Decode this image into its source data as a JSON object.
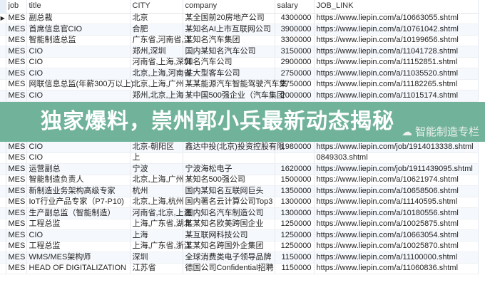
{
  "columns": [
    "job",
    "title",
    "CITY",
    "company",
    "salary",
    "JOB_LINK"
  ],
  "rows": [
    [
      "MES",
      "副总裁",
      "北京",
      "某全国前20房地产公司",
      "4300000",
      "https://www.liepin.com/a/10663055.shtml"
    ],
    [
      "MES",
      "首席信息官CIO",
      "合肥",
      "某知名AI上市互联网公司",
      "3900000",
      "https://www.liepin.com/a/10761042.shtml"
    ],
    [
      "MES",
      "智能制造总监",
      "广东省,河南省,江",
      "某知名汽车集团",
      "3300000",
      "https://www.liepin.com/a/10199656.shtml"
    ],
    [
      "MES",
      "CIO",
      "郑州,深圳",
      "国内某知名汽车公司",
      "3150000",
      "https://www.liepin.com/a/11041728.shtml"
    ],
    [
      "MES",
      "CIO",
      "河南省,上海,深圳",
      "知名汽车公司",
      "2900000",
      "https://www.liepin.com/a/11152851.shtml"
    ],
    [
      "MES",
      "CIO",
      "北京,上海,河南省",
      "某大型客车公司",
      "2750000",
      "https://www.liepin.com/a/11035520.shtml"
    ],
    [
      "MES",
      "网联信息总监(年薪300万以上)",
      "北京,上海,广州",
      "某某能源汽车智能驾驶汽车集",
      "2750000",
      "https://www.liepin.com/a/11182265.shtml"
    ],
    [
      "MES",
      "CIO",
      "郑州,北京,上海",
      "某中国500强企业（汽车集团",
      "2000000",
      "https://www.liepin.com/a/11015174.shtml"
    ],
    [
      "MES",
      "CIO",
      "北京-朝阳区",
      "鑫达中投(北京)投资控股有限",
      "1980000",
      "https://www.liepin.com/job/1914013338.shtml"
    ],
    [
      "MES",
      "CIO",
      "上",
      "",
      "",
      "0849303.shtml"
    ],
    [
      "MES",
      "运营副总",
      "宁波",
      "宁波海松电子",
      "1620000",
      "https://www.liepin.com/job/1911439095.shtml"
    ],
    [
      "MES",
      "智能制造负责人",
      "北京,上海,广州",
      "某知名500强公司",
      "1500000",
      "https://www.liepin.com/a/10621974.shtml"
    ],
    [
      "MES",
      "新制造业务架构高级专家",
      "杭州",
      "国内某知名互联网巨头",
      "1350000",
      "https://www.liepin.com/a/10658506.shtml"
    ],
    [
      "MES",
      "IoT行业产品专家（P7-P10)",
      "北京,上海,杭州",
      "国内著名云计算公司Top3",
      "1300000",
      "https://www.liepin.com/a/11140595.shtml"
    ],
    [
      "MES",
      "生产副总监（智能制造）",
      "河南省,北京,上海",
      "国内知名汽车制造公司",
      "1300000",
      "https://www.liepin.com/a/10180556.shtml"
    ],
    [
      "MES",
      "工程总监",
      "上海,广东省,湖北",
      "某某知名欧美跨国企业",
      "1250000",
      "https://www.liepin.com/a/10025875.shtml"
    ],
    [
      "MES",
      "CIO",
      "上海",
      "某互联网科技公司",
      "1250000",
      "https://www.liepin.com/a/10663054.shtml"
    ],
    [
      "MES",
      "工程总监",
      "上海,广东省,浙江",
      "某某知名跨国外企集团",
      "1250000",
      "https://www.liepin.com/a/10025870.shtml"
    ],
    [
      "MES",
      "WMS/MES架构师",
      "深圳",
      "全球消费类电子领导品牌",
      "1150000",
      "https://www.liepin.com/a/11100000.shtml"
    ],
    [
      "MES",
      "HEAD OF DIGITALIZATION",
      "江苏省",
      "德国公司Confidential招聘",
      "1150000",
      "https://www.liepin.com/a/11060836.shtml"
    ]
  ],
  "banner": "独家爆料，崇州郭小兵最新动态揭秘",
  "watermark": "智能制造专栏",
  "icons": {
    "row_indicator": "triangle-right-icon",
    "watermark": "wechat-icon"
  },
  "colors": {
    "banner": "#5ca88c",
    "header_indicator": "#e6eef8"
  }
}
